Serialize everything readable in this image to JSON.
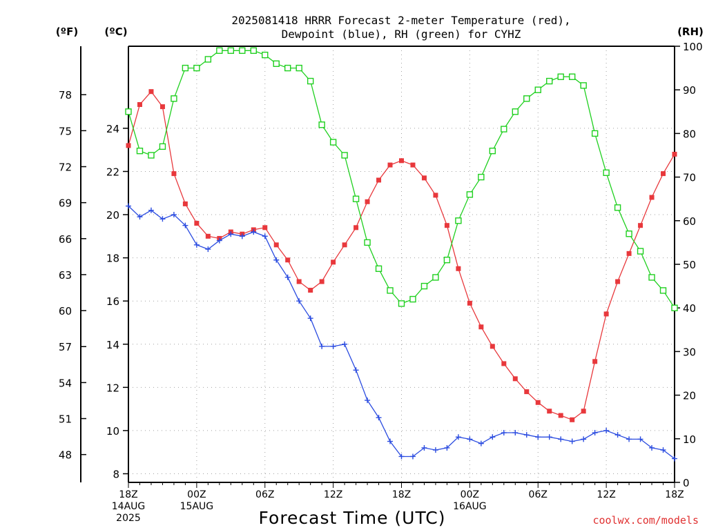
{
  "chart_data": {
    "type": "line",
    "title_line1": "2025081418 HRRR Forecast 2-meter Temperature (red),",
    "title_line2": "Dewpoint (blue), RH (green) for CYHZ",
    "xlabel": "Forecast Time (UTC)",
    "credit": "coolwx.com/models",
    "unit_f": "(ºF)",
    "unit_c": "(ºC)",
    "unit_rh": "(RH)",
    "x_hours_from_start": [
      0,
      1,
      2,
      3,
      4,
      5,
      6,
      7,
      8,
      9,
      10,
      11,
      12,
      13,
      14,
      15,
      16,
      17,
      18,
      19,
      20,
      21,
      22,
      23,
      24,
      25,
      26,
      27,
      28,
      29,
      30,
      31,
      32,
      33,
      34,
      35,
      36,
      37,
      38,
      39,
      40,
      41,
      42,
      43,
      44,
      45,
      46,
      47,
      48
    ],
    "x_range": [
      0,
      48
    ],
    "x_ticks": [
      {
        "h": 0,
        "lines": [
          "18Z",
          "14AUG",
          "2025"
        ]
      },
      {
        "h": 6,
        "lines": [
          "00Z",
          "15AUG"
        ]
      },
      {
        "h": 12,
        "lines": [
          "06Z"
        ]
      },
      {
        "h": 18,
        "lines": [
          "12Z"
        ]
      },
      {
        "h": 24,
        "lines": [
          "18Z"
        ]
      },
      {
        "h": 30,
        "lines": [
          "00Z",
          "16AUG"
        ]
      },
      {
        "h": 36,
        "lines": [
          "06Z"
        ]
      },
      {
        "h": 42,
        "lines": [
          "12Z"
        ]
      },
      {
        "h": 48,
        "lines": [
          "18Z"
        ]
      }
    ],
    "y_c_range": [
      7.6,
      27.8
    ],
    "y_c_ticks": [
      8,
      10,
      12,
      14,
      16,
      18,
      20,
      22,
      24
    ],
    "y_f_ticks": [
      48,
      51,
      54,
      57,
      60,
      63,
      66,
      69,
      72,
      75,
      78
    ],
    "y_rh_range": [
      0,
      100
    ],
    "y_rh_ticks": [
      0,
      10,
      20,
      30,
      40,
      50,
      60,
      70,
      80,
      90,
      100
    ],
    "series": [
      {
        "name": "Temperature",
        "axis": "c",
        "color": "#e8383c",
        "marker": "filled-square",
        "values": [
          23.2,
          25.1,
          25.7,
          25.0,
          21.9,
          20.5,
          19.6,
          19.0,
          18.9,
          19.2,
          19.1,
          19.3,
          19.4,
          18.6,
          17.9,
          16.9,
          16.5,
          16.9,
          17.8,
          18.6,
          19.4,
          20.6,
          21.6,
          22.3,
          22.5,
          22.3,
          21.7,
          20.9,
          19.5,
          17.5,
          15.9,
          14.8,
          13.9,
          13.1,
          12.4,
          11.8,
          11.3,
          10.9,
          10.7,
          10.5,
          10.9,
          13.2,
          15.4,
          16.9,
          18.2,
          19.5,
          20.8,
          21.9,
          22.8
        ]
      },
      {
        "name": "Dewpoint",
        "axis": "c",
        "color": "#2a4be0",
        "marker": "plus",
        "values": [
          20.4,
          19.9,
          20.2,
          19.8,
          20.0,
          19.5,
          18.6,
          18.4,
          18.8,
          19.1,
          19.0,
          19.2,
          19.0,
          17.9,
          17.1,
          16.0,
          15.2,
          13.9,
          13.9,
          14.0,
          12.8,
          11.4,
          10.6,
          9.5,
          8.8,
          8.8,
          9.2,
          9.1,
          9.2,
          9.7,
          9.6,
          9.4,
          9.7,
          9.9,
          9.9,
          9.8,
          9.7,
          9.7,
          9.6,
          9.5,
          9.6,
          9.9,
          10.0,
          9.8,
          9.6,
          9.6,
          9.2,
          9.1,
          8.7
        ]
      },
      {
        "name": "RH",
        "axis": "rh",
        "color": "#1fd01f",
        "marker": "open-square",
        "values": [
          85,
          76,
          75,
          77,
          88,
          95,
          95,
          97,
          99,
          99,
          99,
          99,
          98,
          96,
          95,
          95,
          92,
          82,
          78,
          75,
          65,
          55,
          49,
          44,
          41,
          42,
          45,
          47,
          51,
          60,
          66,
          70,
          76,
          81,
          85,
          88,
          90,
          92,
          93,
          93,
          91,
          80,
          71,
          63,
          57,
          53,
          47,
          44,
          40
        ]
      }
    ]
  }
}
